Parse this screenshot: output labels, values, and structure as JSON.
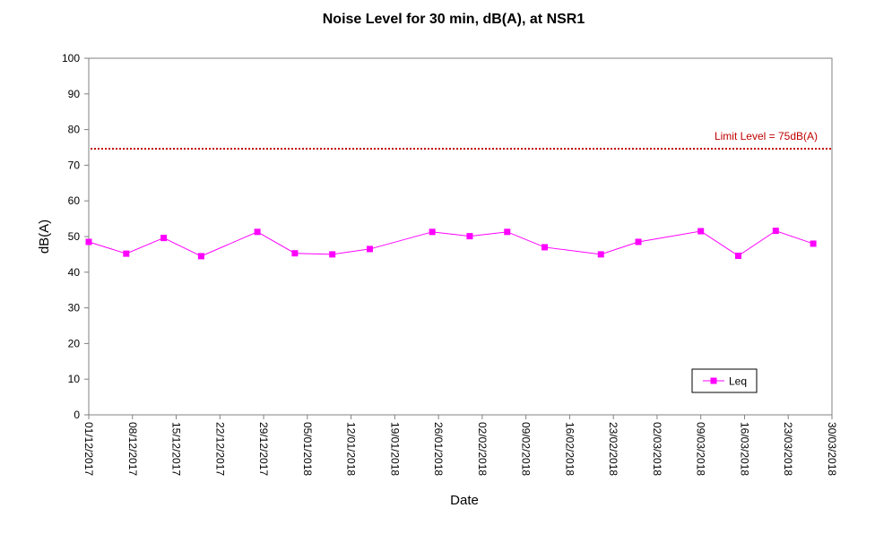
{
  "chart_data": {
    "type": "line",
    "title": "Noise Level for 30 min, dB(A), at NSR1",
    "xlabel": "Date",
    "ylabel": "dB(A)",
    "ylim": [
      0,
      100
    ],
    "yticks": [
      0,
      10,
      20,
      30,
      40,
      50,
      60,
      70,
      80,
      90,
      100
    ],
    "xlim": [
      "2017-12-01",
      "2018-03-30"
    ],
    "xtick_labels": [
      "01/12/2017",
      "08/12/2017",
      "15/12/2017",
      "22/12/2017",
      "29/12/2017",
      "05/01/2018",
      "12/01/2018",
      "19/01/2018",
      "26/01/2018",
      "02/02/2018",
      "09/02/2018",
      "16/02/2018",
      "23/02/2018",
      "02/03/2018",
      "09/03/2018",
      "16/03/2018",
      "23/03/2018",
      "30/03/2018"
    ],
    "grid": false,
    "legend_position": "bottom-right",
    "series": [
      {
        "name": "Leq",
        "color": "#ff00ff",
        "marker": "square",
        "x": [
          "2017-12-01",
          "2017-12-07",
          "2017-12-13",
          "2017-12-19",
          "2017-12-28",
          "2018-01-03",
          "2018-01-09",
          "2018-01-15",
          "2018-01-25",
          "2018-01-31",
          "2018-02-06",
          "2018-02-12",
          "2018-02-21",
          "2018-02-27",
          "2018-03-09",
          "2018-03-15",
          "2018-03-21",
          "2018-03-27"
        ],
        "y": [
          48.5,
          45.2,
          49.6,
          44.5,
          51.3,
          45.3,
          45.0,
          46.5,
          51.3,
          50.1,
          51.3,
          47.0,
          45.0,
          48.5,
          51.5,
          44.6,
          51.6,
          48.0
        ]
      }
    ],
    "limit_line": {
      "value": 75,
      "label": "Limit Level = 75dB(A)",
      "color": "#c00000"
    }
  }
}
